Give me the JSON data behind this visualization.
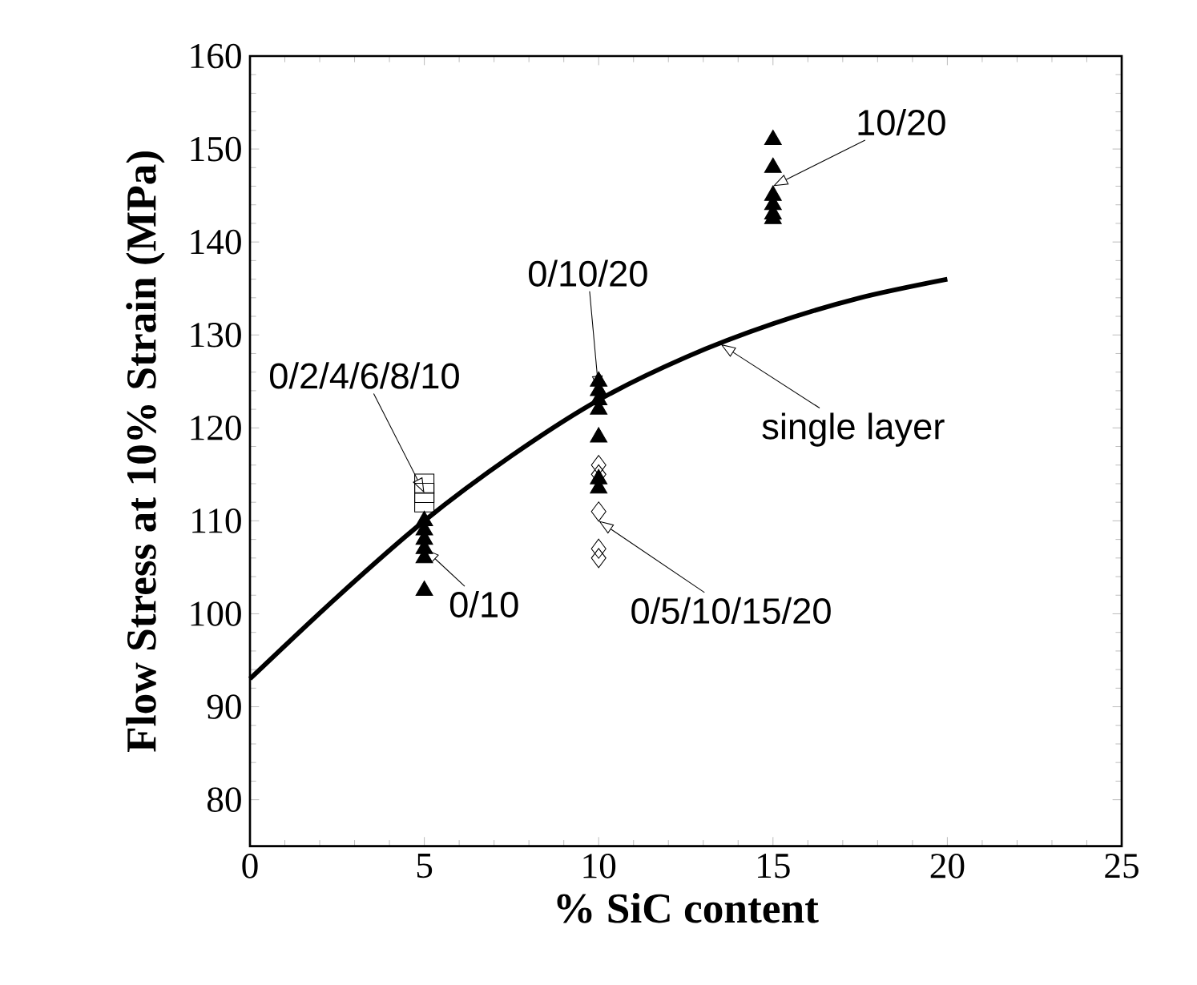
{
  "chart_data": {
    "type": "scatter",
    "xlabel": "% SiC content",
    "ylabel": "Flow Stress at  10% Strain (MPa)",
    "xlim": [
      0,
      25
    ],
    "ylim": [
      75,
      160
    ],
    "xticks": [
      0,
      5,
      10,
      15,
      20,
      25
    ],
    "yticks": [
      80,
      90,
      100,
      110,
      120,
      130,
      140,
      150,
      160
    ],
    "grid": false,
    "series": [
      {
        "type": "line",
        "marker": "none",
        "line_style": "solid",
        "color": "#000000",
        "x": [
          0,
          2.5,
          5,
          7.5,
          10,
          12.5,
          15,
          17.5,
          20
        ],
        "values": [
          93,
          101.8,
          110,
          117,
          123,
          127.6,
          131.2,
          134,
          136
        ]
      },
      {
        "marker": "square",
        "color": "#000000",
        "x": [
          5,
          5,
          5
        ],
        "values": [
          114,
          113,
          112
        ]
      },
      {
        "marker": "triangle",
        "color": "#000000",
        "x": [
          5,
          5,
          5,
          5,
          5,
          5,
          10,
          10,
          10,
          10,
          10,
          10,
          10,
          15,
          15,
          15,
          15,
          15,
          15
        ],
        "values": [
          110,
          109,
          108,
          107,
          106,
          102.5,
          125,
          124,
          123,
          122,
          119,
          114.5,
          113.5,
          151,
          148,
          145,
          144,
          143,
          142.5
        ]
      },
      {
        "marker": "diamond",
        "color": "#000000",
        "x": [
          10,
          10,
          10,
          10,
          10
        ],
        "values": [
          116,
          115,
          111,
          107,
          106
        ]
      }
    ],
    "annotations": [
      {
        "text": "0/2/4/6/8/10",
        "x": 5,
        "y": 113
      },
      {
        "text": "0/10",
        "x": 5,
        "y": 107
      },
      {
        "text": "0/10/20",
        "x": 10,
        "y": 124
      },
      {
        "text": "0/5/10/15/20",
        "x": 10,
        "y": 110
      },
      {
        "text": "10/20",
        "x": 15,
        "y": 146
      },
      {
        "text": "single layer",
        "x": 13.5,
        "y": 129
      }
    ]
  }
}
